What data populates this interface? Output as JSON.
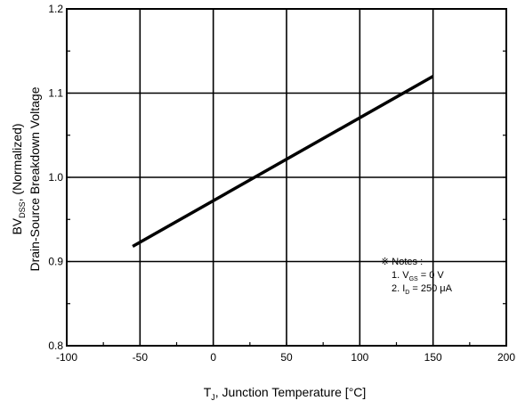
{
  "chart_data": {
    "type": "line",
    "title": "",
    "xlabel": {
      "main": "T",
      "sub": "J",
      "rest": ", Junction Temperature [°C]"
    },
    "ylabel": {
      "line1_pre": "BV",
      "line1_sub": "DSS",
      "line1_post": ", (Normalized)",
      "line2": "Drain-Source Breakdown Voltage"
    },
    "xlim": [
      -100,
      200
    ],
    "ylim": [
      0.8,
      1.2
    ],
    "x_ticks": [
      -100,
      -50,
      0,
      50,
      100,
      150,
      200
    ],
    "y_ticks": [
      0.8,
      0.9,
      1.0,
      1.1,
      1.2
    ],
    "x_tick_labels": [
      "-100",
      "-50",
      "0",
      "50",
      "100",
      "150",
      "200"
    ],
    "y_tick_labels": [
      "0.8",
      "0.9",
      "1.0",
      "1.1",
      "1.2"
    ],
    "grid": true,
    "series": [
      {
        "color": "#000000",
        "x": [
          -55,
          150
        ],
        "y": [
          0.918,
          1.12
        ]
      }
    ],
    "notes": {
      "header": "※ Notes :",
      "line1_pre": "1. V",
      "line1_sub": "GS",
      "line1_post": " = 0 V",
      "line2_pre": "2. I",
      "line2_sub": "D",
      "line2_post": " = 250 μA"
    }
  }
}
